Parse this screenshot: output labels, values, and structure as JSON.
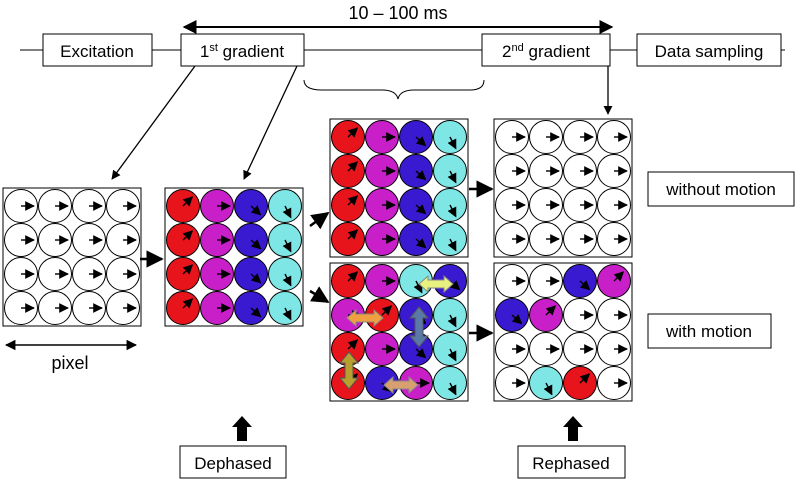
{
  "timing": {
    "label": "10 – 100 ms"
  },
  "boxes": {
    "excitation": "Excitation",
    "gradient1": {
      "base": "1",
      "sup": "st",
      "rest": " gradient"
    },
    "gradient2": {
      "base": "2",
      "sup": "nd",
      "rest": " gradient"
    },
    "data_sampling": "Data sampling",
    "dephased": "Dephased",
    "rephased": "Rephased"
  },
  "labels": {
    "pixel": "pixel",
    "without_motion": "without motion",
    "with_motion": "with motion"
  },
  "colors": {
    "red": "#e8141c",
    "magenta": "#c81fc8",
    "blue": "#3a1ad0",
    "cyan": "#7fe6e6",
    "white": "#ffffff",
    "orange_arrow": "#f0a040",
    "yellow_arrow": "#e8f080",
    "steel_arrow": "#5a78a8",
    "olive_arrow": "#b8a030",
    "tan_arrow": "#d8a070"
  },
  "grids": {
    "excitation_state": {
      "fills": [
        [
          "white",
          "white",
          "white",
          "white"
        ],
        [
          "white",
          "white",
          "white",
          "white"
        ],
        [
          "white",
          "white",
          "white",
          "white"
        ],
        [
          "white",
          "white",
          "white",
          "white"
        ]
      ],
      "spins": [
        [
          "right",
          "right",
          "right",
          "right"
        ],
        [
          "right",
          "right",
          "right",
          "right"
        ],
        [
          "right",
          "right",
          "right",
          "right"
        ],
        [
          "right",
          "right",
          "right",
          "right"
        ]
      ]
    },
    "dephased_state": {
      "fills": [
        [
          "red",
          "magenta",
          "blue",
          "cyan"
        ],
        [
          "red",
          "magenta",
          "blue",
          "cyan"
        ],
        [
          "red",
          "magenta",
          "blue",
          "cyan"
        ],
        [
          "red",
          "magenta",
          "blue",
          "cyan"
        ]
      ],
      "spins": [
        [
          "up-right",
          "right",
          "down-right",
          "down"
        ],
        [
          "up-right",
          "right",
          "down-right",
          "down"
        ],
        [
          "up-right",
          "right",
          "down-right",
          "down"
        ],
        [
          "up-right",
          "right",
          "down-right",
          "down"
        ]
      ]
    },
    "static_second": {
      "fills": [
        [
          "red",
          "magenta",
          "blue",
          "cyan"
        ],
        [
          "red",
          "magenta",
          "blue",
          "cyan"
        ],
        [
          "red",
          "magenta",
          "blue",
          "cyan"
        ],
        [
          "red",
          "magenta",
          "blue",
          "cyan"
        ]
      ],
      "spins": [
        [
          "up-right",
          "right",
          "down-right",
          "down"
        ],
        [
          "up-right",
          "right",
          "down-right",
          "down"
        ],
        [
          "up-right",
          "right",
          "down-right",
          "down"
        ],
        [
          "up-right",
          "right",
          "down-right",
          "down"
        ]
      ]
    },
    "moving_second": {
      "fills": [
        [
          "red",
          "magenta",
          "cyan",
          "blue"
        ],
        [
          "magenta",
          "red",
          "blue",
          "cyan"
        ],
        [
          "red",
          "magenta",
          "blue",
          "cyan"
        ],
        [
          "red",
          "blue",
          "magenta",
          "cyan"
        ]
      ],
      "spins": [
        [
          "up-right",
          "right",
          "down",
          "down-right"
        ],
        [
          "right",
          "up-right",
          "down-right",
          "down"
        ],
        [
          "up-right",
          "right",
          "down-right",
          "down"
        ],
        [
          "up-right",
          "down-right",
          "right",
          "down"
        ]
      ]
    },
    "rephased_static": {
      "fills": [
        [
          "white",
          "white",
          "white",
          "white"
        ],
        [
          "white",
          "white",
          "white",
          "white"
        ],
        [
          "white",
          "white",
          "white",
          "white"
        ],
        [
          "white",
          "white",
          "white",
          "white"
        ]
      ],
      "spins": [
        [
          "right",
          "right",
          "right",
          "right"
        ],
        [
          "right",
          "right",
          "right",
          "right"
        ],
        [
          "right",
          "right",
          "right",
          "right"
        ],
        [
          "right",
          "right",
          "right",
          "right"
        ]
      ]
    },
    "rephased_moving": {
      "fills": [
        [
          "white",
          "white",
          "blue",
          "magenta"
        ],
        [
          "blue",
          "magenta",
          "white",
          "white"
        ],
        [
          "white",
          "white",
          "white",
          "white"
        ],
        [
          "white",
          "cyan",
          "red",
          "white"
        ]
      ],
      "spins": [
        [
          "right",
          "right",
          "down-right",
          "up-right"
        ],
        [
          "down-right",
          "up-right",
          "right",
          "right"
        ],
        [
          "right",
          "right",
          "right",
          "right"
        ],
        [
          "right",
          "down",
          "up-right",
          "right"
        ]
      ]
    }
  }
}
